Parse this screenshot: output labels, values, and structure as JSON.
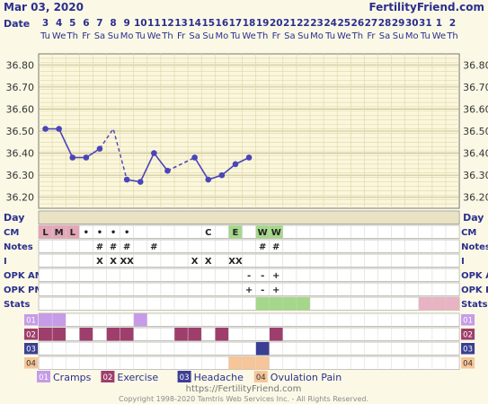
{
  "header": {
    "date_title": "Mar 03, 2020",
    "site": "FertilityFriend.com"
  },
  "chart_data": {
    "type": "line",
    "date_label": "Date",
    "day_label": "Day",
    "x": [
      1,
      2,
      3,
      4,
      5,
      6,
      7,
      8,
      9,
      10,
      11,
      12,
      13,
      14,
      15,
      16,
      17,
      18,
      19,
      20,
      21,
      22,
      23,
      24,
      25,
      26,
      27,
      28,
      29,
      30,
      31
    ],
    "dates": [
      "3",
      "4",
      "5",
      "6",
      "7",
      "8",
      "9",
      "10",
      "11",
      "12",
      "13",
      "14",
      "15",
      "16",
      "17",
      "18",
      "19",
      "20",
      "21",
      "22",
      "23",
      "24",
      "25",
      "26",
      "27",
      "28",
      "29",
      "30",
      "31",
      "1",
      "2"
    ],
    "weekdays": [
      "Tu",
      "We",
      "Th",
      "Fr",
      "Sa",
      "Su",
      "Mo",
      "Tu",
      "We",
      "Th",
      "Fr",
      "Sa",
      "Su",
      "Mo",
      "Tu",
      "We",
      "Th",
      "Fr",
      "Sa",
      "Su",
      "Mo",
      "Tu",
      "We",
      "Th",
      "Fr",
      "Sa",
      "Su",
      "Mo",
      "Tu",
      "We",
      "Th"
    ],
    "y_ticks": [
      "36.20",
      "36.30",
      "36.40",
      "36.50",
      "36.60",
      "36.70",
      "36.80"
    ],
    "ylim": [
      36.15,
      36.85
    ],
    "temperatures": [
      {
        "day": 1,
        "value": 36.51
      },
      {
        "day": 2,
        "value": 36.51
      },
      {
        "day": 3,
        "value": 36.38
      },
      {
        "day": 4,
        "value": 36.38
      },
      {
        "day": 5,
        "value": 36.42
      },
      {
        "day": 6,
        "value": 36.51,
        "excluded": true
      },
      {
        "day": 7,
        "value": 36.28
      },
      {
        "day": 8,
        "value": 36.27
      },
      {
        "day": 9,
        "value": 36.4
      },
      {
        "day": 10,
        "value": 36.32
      },
      {
        "day": 12,
        "value": 36.38
      },
      {
        "day": 13,
        "value": 36.28
      },
      {
        "day": 14,
        "value": 36.3
      },
      {
        "day": 15,
        "value": 36.35
      },
      {
        "day": 16,
        "value": 36.38
      }
    ],
    "rows": [
      {
        "label": "CM",
        "cells": [
          {
            "day": 1,
            "text": "L",
            "bg": "#e3a7b8"
          },
          {
            "day": 2,
            "text": "M",
            "bg": "#e3a7b8"
          },
          {
            "day": 3,
            "text": "L",
            "bg": "#e3a7b8"
          },
          {
            "day": 4,
            "text": "•"
          },
          {
            "day": 5,
            "text": "•"
          },
          {
            "day": 6,
            "text": "•"
          },
          {
            "day": 7,
            "text": "•"
          },
          {
            "day": 13,
            "text": "C"
          },
          {
            "day": 15,
            "text": "E",
            "bg": "#a5d78b"
          },
          {
            "day": 17,
            "text": "W",
            "bg": "#a5d78b"
          },
          {
            "day": 18,
            "text": "W",
            "bg": "#a5d78b"
          }
        ]
      },
      {
        "label": "Notes",
        "cells": [
          {
            "day": 5,
            "text": "#"
          },
          {
            "day": 6,
            "text": "#"
          },
          {
            "day": 7,
            "text": "#"
          },
          {
            "day": 9,
            "text": "#"
          },
          {
            "day": 17,
            "text": "#"
          },
          {
            "day": 18,
            "text": "#"
          }
        ]
      },
      {
        "label": "I",
        "cells": [
          {
            "day": 5,
            "text": "X"
          },
          {
            "day": 6,
            "text": "X"
          },
          {
            "day": 7,
            "text": "XX"
          },
          {
            "day": 12,
            "text": "X"
          },
          {
            "day": 13,
            "text": "X"
          },
          {
            "day": 15,
            "text": "XX"
          }
        ]
      },
      {
        "label": "OPK AM",
        "cells": [
          {
            "day": 16,
            "text": "-"
          },
          {
            "day": 17,
            "text": "-"
          },
          {
            "day": 18,
            "text": "+"
          }
        ]
      },
      {
        "label": "OPK PM",
        "cells": [
          {
            "day": 16,
            "text": "+"
          },
          {
            "day": 17,
            "text": "-"
          },
          {
            "day": 18,
            "text": "+"
          }
        ]
      },
      {
        "label": "Stats",
        "cells": [
          {
            "day": 17,
            "span": 4,
            "bg": "#a5d78b"
          },
          {
            "day": 29,
            "span": 3,
            "bg": "#e8b3c3"
          }
        ]
      }
    ],
    "symptoms": [
      {
        "code": "01",
        "name": "Cramps",
        "color": "#c69be8",
        "days": [
          1,
          2,
          8
        ]
      },
      {
        "code": "02",
        "name": "Exercise",
        "color": "#9e3e6c",
        "days": [
          1,
          2,
          4,
          6,
          7,
          11,
          12,
          14,
          18
        ]
      },
      {
        "code": "03",
        "name": "Headache",
        "color": "#3b3f93",
        "days": [
          17
        ]
      },
      {
        "code": "04",
        "name": "Ovulation Pain",
        "color": "#f6c59a",
        "days": [
          15,
          16,
          17
        ]
      }
    ]
  },
  "footer": {
    "url": "https://FertilityFriend.com",
    "copyright": "Copyright 1998-2020 Tamtris Web Services Inc. - All Rights Reserved."
  }
}
